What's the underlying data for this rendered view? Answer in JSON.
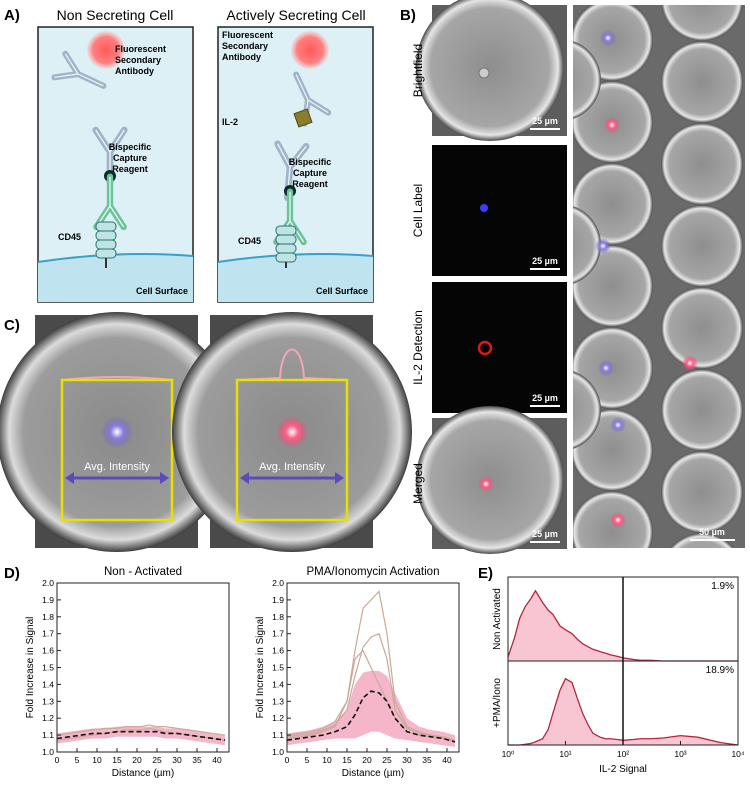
{
  "panels": {
    "A": {
      "label": "A)",
      "left": {
        "title": "Non Secreting Cell",
        "secondary": [
          "Fluorescent",
          "Secondary",
          "Antibody"
        ],
        "capture": [
          "Bispecific",
          "Capture",
          "Reagent"
        ],
        "receptor": "CD45",
        "surface": "Cell Surface"
      },
      "right": {
        "title": "Actively Secreting Cell",
        "secondary": [
          "Fluorescent",
          "Secondary",
          "Antibody"
        ],
        "analyte": "IL-2",
        "capture": [
          "Bispecific",
          "Capture",
          "Reagent"
        ],
        "receptor": "CD45",
        "surface": "Cell Surface"
      }
    },
    "B": {
      "label": "B)",
      "rows": [
        "Brightfield",
        "Cell Label",
        "IL-2 Detection",
        "Merged"
      ],
      "scale_bars": [
        "25 µm",
        "25 µm",
        "25 µm",
        "25 µm"
      ],
      "overview_scale_bar": "50 µm"
    },
    "C": {
      "label": "C)",
      "annotations": [
        "Avg. Intensity",
        "Avg. Intensity"
      ]
    },
    "D": {
      "label": "D)"
    },
    "E": {
      "label": "E)"
    }
  },
  "chart_data": [
    {
      "type": "line",
      "title": "Non - Activated",
      "xlabel": "Distance (µm)",
      "ylabel": "Fold Increase in Signal",
      "x": [
        0,
        3,
        6,
        9,
        12,
        15,
        17,
        19,
        21,
        23,
        25,
        27,
        30,
        33,
        36,
        39,
        42
      ],
      "xlim": [
        0,
        43
      ],
      "xticks": [
        0,
        5,
        10,
        15,
        20,
        25,
        30,
        35,
        40
      ],
      "ylim": [
        1,
        2
      ],
      "yticks": [
        {
          "value": 1,
          "label": "1.0"
        },
        {
          "value": 1.1,
          "label": "1.1"
        },
        {
          "value": 1.2,
          "label": "1.2"
        },
        {
          "value": 1.3,
          "label": "1.3"
        },
        {
          "value": 1.4,
          "label": "1.4"
        },
        {
          "value": 1.5,
          "label": "1.5"
        },
        {
          "value": 1.6,
          "label": "1.6"
        },
        {
          "value": 1.7,
          "label": "1.7"
        },
        {
          "value": 1.8,
          "label": "1.8"
        },
        {
          "value": 1.9,
          "label": "1.9"
        },
        {
          "value": 2,
          "label": "2.0"
        }
      ],
      "band": {
        "color": "#f4a9c0",
        "upper": [
          1.11,
          1.12,
          1.13,
          1.14,
          1.14,
          1.15,
          1.15,
          1.15,
          1.15,
          1.15,
          1.15,
          1.14,
          1.14,
          1.13,
          1.12,
          1.11,
          1.1
        ],
        "lower": [
          1.05,
          1.06,
          1.07,
          1.08,
          1.08,
          1.09,
          1.09,
          1.09,
          1.09,
          1.09,
          1.09,
          1.08,
          1.08,
          1.07,
          1.06,
          1.05,
          1.04
        ]
      },
      "series": [
        {
          "color": "#c9a99a",
          "style": "solid",
          "values": [
            1.1,
            1.11,
            1.12,
            1.13,
            1.14,
            1.14,
            1.15,
            1.15,
            1.15,
            1.16,
            1.15,
            1.15,
            1.14,
            1.13,
            1.12,
            1.11,
            1.1
          ]
        },
        {
          "color": "#c9a99a",
          "style": "solid",
          "values": [
            1.07,
            1.08,
            1.09,
            1.1,
            1.11,
            1.12,
            1.13,
            1.13,
            1.13,
            1.14,
            1.13,
            1.12,
            1.11,
            1.1,
            1.09,
            1.08,
            1.07
          ]
        },
        {
          "color": "#111111",
          "style": "dashed",
          "values": [
            1.08,
            1.09,
            1.1,
            1.11,
            1.11,
            1.12,
            1.12,
            1.12,
            1.12,
            1.12,
            1.12,
            1.11,
            1.11,
            1.1,
            1.09,
            1.08,
            1.07
          ]
        }
      ]
    },
    {
      "type": "line",
      "title": "PMA/Ionomycin Activation",
      "xlabel": "Distance (µm)",
      "ylabel": "Fold Increase in Signal",
      "x": [
        0,
        3,
        6,
        9,
        12,
        15,
        17,
        19,
        21,
        23,
        25,
        27,
        30,
        33,
        36,
        39,
        42
      ],
      "xlim": [
        0,
        43
      ],
      "xticks": [
        0,
        5,
        10,
        15,
        20,
        25,
        30,
        35,
        40
      ],
      "ylim": [
        1,
        2
      ],
      "yticks": [
        {
          "value": 1,
          "label": "1.0"
        },
        {
          "value": 1.1,
          "label": "1.1"
        },
        {
          "value": 1.2,
          "label": "1.2"
        },
        {
          "value": 1.3,
          "label": "1.3"
        },
        {
          "value": 1.4,
          "label": "1.4"
        },
        {
          "value": 1.5,
          "label": "1.5"
        },
        {
          "value": 1.6,
          "label": "1.6"
        },
        {
          "value": 1.7,
          "label": "1.7"
        },
        {
          "value": 1.8,
          "label": "1.8"
        },
        {
          "value": 1.9,
          "label": "1.9"
        },
        {
          "value": 2,
          "label": "2.0"
        }
      ],
      "band": {
        "color": "#f4a9c0",
        "upper": [
          1.11,
          1.12,
          1.13,
          1.15,
          1.18,
          1.25,
          1.4,
          1.47,
          1.48,
          1.48,
          1.45,
          1.35,
          1.2,
          1.15,
          1.13,
          1.12,
          1.1
        ],
        "lower": [
          1.04,
          1.05,
          1.06,
          1.07,
          1.08,
          1.08,
          1.08,
          1.1,
          1.12,
          1.12,
          1.1,
          1.08,
          1.07,
          1.06,
          1.05,
          1.04,
          1.03
        ]
      },
      "series": [
        {
          "color": "#c9a99a",
          "style": "solid",
          "values": [
            1.1,
            1.11,
            1.12,
            1.14,
            1.18,
            1.3,
            1.6,
            1.85,
            1.9,
            1.95,
            1.7,
            1.3,
            1.15,
            1.12,
            1.1,
            1.09,
            1.07
          ]
        },
        {
          "color": "#c9a99a",
          "style": "solid",
          "values": [
            1.09,
            1.1,
            1.11,
            1.13,
            1.16,
            1.25,
            1.45,
            1.62,
            1.68,
            1.7,
            1.55,
            1.25,
            1.14,
            1.11,
            1.1,
            1.08,
            1.06
          ]
        },
        {
          "color": "#c9a99a",
          "style": "solid",
          "values": [
            1.08,
            1.09,
            1.1,
            1.12,
            1.15,
            1.3,
            1.55,
            1.6,
            1.5,
            1.4,
            1.3,
            1.2,
            1.12,
            1.1,
            1.09,
            1.08,
            1.06
          ]
        },
        {
          "color": "#111111",
          "style": "dashed",
          "values": [
            1.07,
            1.08,
            1.09,
            1.1,
            1.12,
            1.15,
            1.22,
            1.32,
            1.36,
            1.35,
            1.3,
            1.2,
            1.12,
            1.1,
            1.09,
            1.08,
            1.06
          ]
        }
      ]
    },
    {
      "type": "histogram",
      "xlabel": "IL-2 Signal",
      "log_x": true,
      "x": [
        1,
        1.3,
        1.6,
        2,
        2.5,
        3,
        4,
        5,
        6,
        8,
        10,
        13,
        16,
        20,
        25,
        30,
        40,
        50,
        60,
        80,
        100,
        150,
        200,
        300,
        500,
        1000,
        2000,
        5000,
        10000
      ],
      "xlim": [
        1,
        10000
      ],
      "xticks": [
        {
          "value": 1,
          "label": "10⁰"
        },
        {
          "value": 10,
          "label": "10¹"
        },
        {
          "value": 100,
          "label": "10²"
        },
        {
          "value": 1000,
          "label": "10³"
        },
        {
          "value": 10000,
          "label": "10⁴"
        }
      ],
      "ylim": [
        0,
        100
      ],
      "gate": 100,
      "series": [
        {
          "name": "Non Activated",
          "color": "#b5263f",
          "fill": "#f7c6d2",
          "annotation": "1.9%",
          "values": [
            5,
            30,
            55,
            70,
            80,
            90,
            75,
            65,
            60,
            45,
            40,
            35,
            28,
            22,
            18,
            15,
            12,
            10,
            8,
            6,
            4,
            2,
            1,
            1,
            0,
            0,
            0,
            0,
            0
          ]
        },
        {
          "name": "+PMA/Iono",
          "color": "#b5263f",
          "fill": "#f7c6d2",
          "annotation": "18.9%",
          "values": [
            0,
            0,
            0,
            1,
            2,
            4,
            8,
            20,
            40,
            70,
            85,
            80,
            60,
            40,
            25,
            15,
            10,
            8,
            8,
            7,
            6,
            7,
            8,
            8,
            9,
            12,
            10,
            3,
            0
          ]
        }
      ]
    }
  ]
}
